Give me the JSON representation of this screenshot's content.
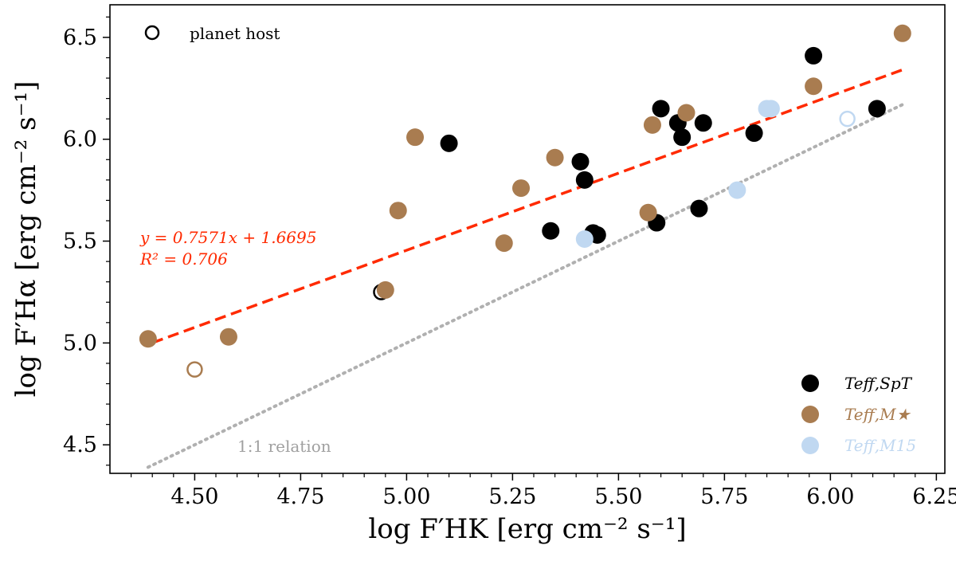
{
  "chart_data": {
    "type": "scatter",
    "title": "",
    "xlabel": "log F′HK [erg cm⁻² s⁻¹]",
    "ylabel": "log F′Hα [erg cm⁻² s⁻¹]",
    "xlim": [
      4.3,
      6.27
    ],
    "ylim": [
      4.36,
      6.66
    ],
    "x_ticks": [
      4.5,
      4.75,
      5.0,
      5.25,
      5.5,
      5.75,
      6.0,
      6.25
    ],
    "x_tick_labels": [
      "4.50",
      "4.75",
      "5.00",
      "5.25",
      "5.50",
      "5.75",
      "6.00",
      "6.25"
    ],
    "y_ticks": [
      4.5,
      5.0,
      5.5,
      6.0,
      6.5
    ],
    "y_tick_labels": [
      "4.5",
      "5.0",
      "5.5",
      "6.0",
      "6.5"
    ],
    "series": [
      {
        "name": "Teff,SpT",
        "color": "#000000",
        "points": [
          [
            4.94,
            5.25,
            1
          ],
          [
            5.1,
            5.98,
            0
          ],
          [
            5.34,
            5.55,
            0
          ],
          [
            5.41,
            5.89,
            0
          ],
          [
            5.42,
            5.8,
            0
          ],
          [
            5.44,
            5.54,
            0
          ],
          [
            5.45,
            5.53,
            0
          ],
          [
            5.59,
            5.59,
            0
          ],
          [
            5.6,
            6.15,
            0
          ],
          [
            5.64,
            6.08,
            0
          ],
          [
            5.65,
            6.01,
            0
          ],
          [
            5.69,
            5.66,
            0
          ],
          [
            5.7,
            6.08,
            0
          ],
          [
            5.82,
            6.03,
            0
          ],
          [
            5.96,
            6.41,
            0
          ],
          [
            6.11,
            6.15,
            0
          ]
        ]
      },
      {
        "name": "Teff,M★",
        "color": "#a97c50",
        "points": [
          [
            4.39,
            5.02,
            0
          ],
          [
            4.5,
            4.87,
            1
          ],
          [
            4.58,
            5.03,
            0
          ],
          [
            4.95,
            5.26,
            0
          ],
          [
            4.98,
            5.65,
            0
          ],
          [
            5.02,
            6.01,
            0
          ],
          [
            5.23,
            5.49,
            0
          ],
          [
            5.27,
            5.76,
            0
          ],
          [
            5.35,
            5.91,
            0
          ],
          [
            5.57,
            5.64,
            0
          ],
          [
            5.58,
            6.07,
            0
          ],
          [
            5.66,
            6.13,
            0
          ],
          [
            5.96,
            6.26,
            0
          ],
          [
            6.17,
            6.52,
            0
          ]
        ]
      },
      {
        "name": "Teff,M15",
        "color": "#c0d8f1",
        "points": [
          [
            5.42,
            5.51,
            0
          ],
          [
            5.78,
            5.75,
            0
          ],
          [
            5.85,
            6.15,
            0
          ],
          [
            5.86,
            6.15,
            0
          ],
          [
            6.04,
            6.1,
            1
          ]
        ]
      }
    ],
    "fit_line": {
      "slope": 0.7571,
      "intercept": 1.6695,
      "x_range": [
        4.4,
        6.17
      ],
      "color": "#ff2a00",
      "equation": "y = 0.7571x + 1.6695",
      "r2": "R² = 0.706"
    },
    "one_to_one": {
      "x_range": [
        4.39,
        6.17
      ],
      "color": "#b0b0b0",
      "label": "1:1 relation"
    },
    "marker_legend": {
      "label": "planet host"
    },
    "legend": {
      "placement": "bottom-right",
      "entries": [
        {
          "label": "Teff,SpT",
          "color": "#000000"
        },
        {
          "label": "Teff,M★",
          "color": "#a97c50"
        },
        {
          "label": "Teff,M15",
          "color": "#c0d8f1"
        }
      ]
    }
  }
}
